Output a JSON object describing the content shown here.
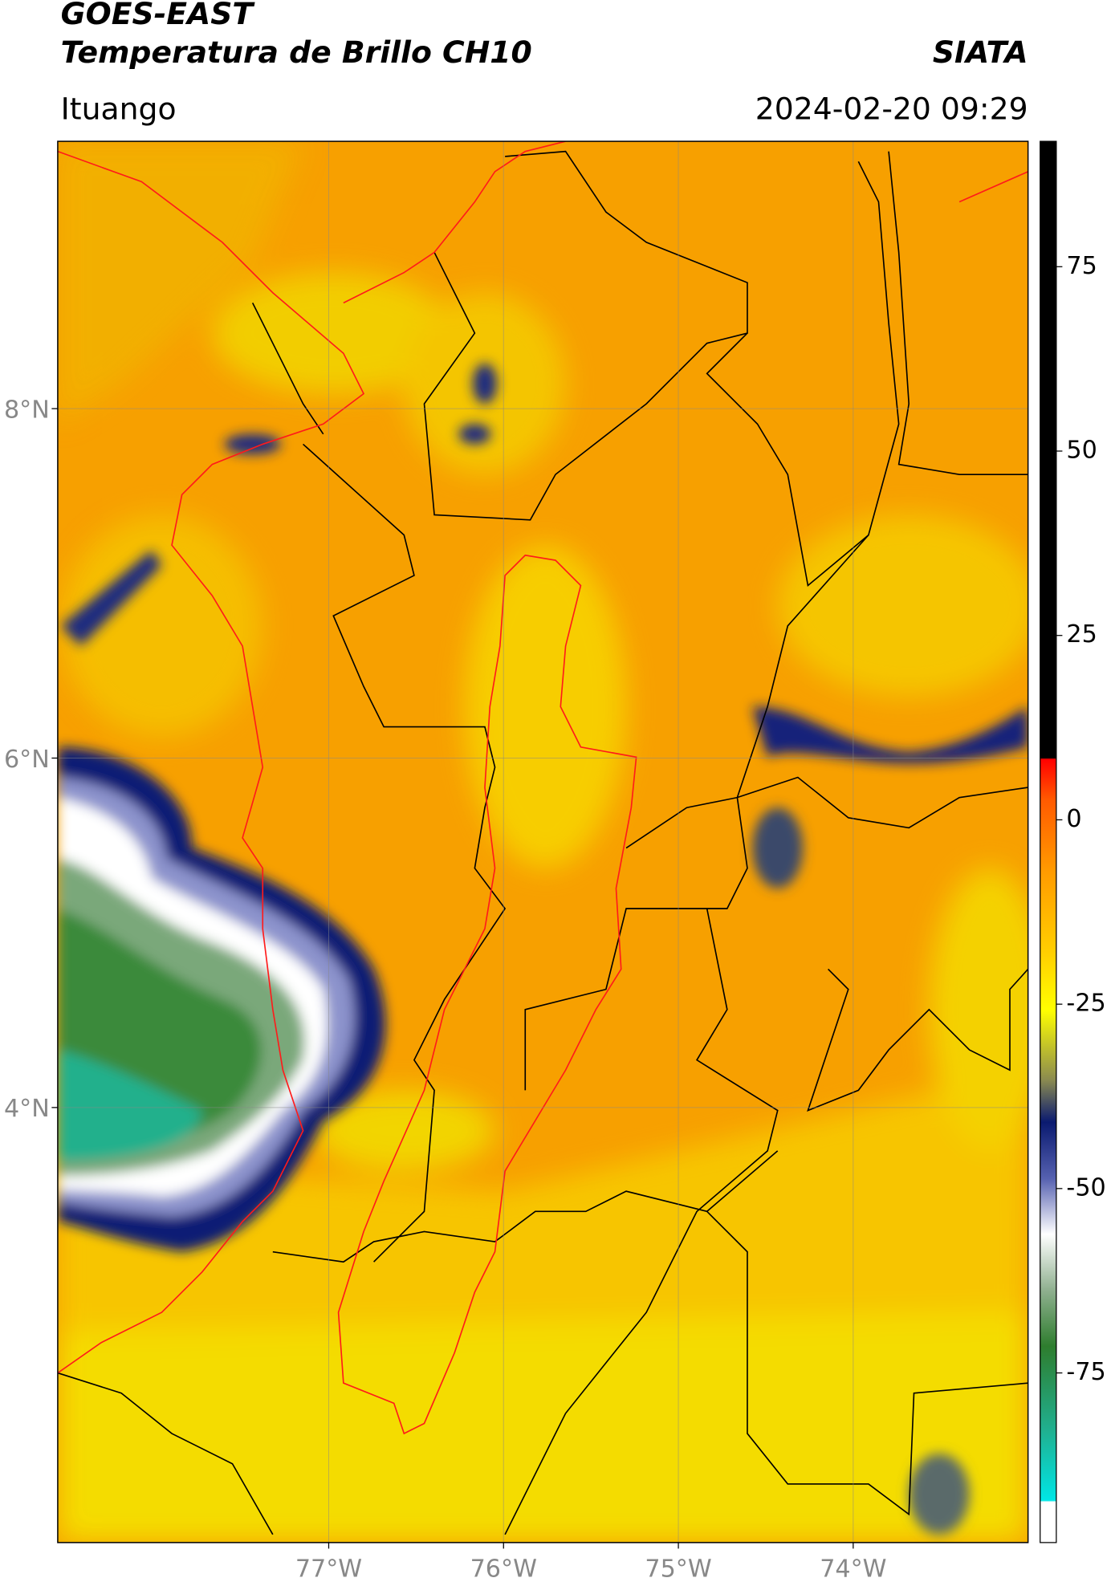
{
  "header": {
    "title": "GOES-EAST",
    "subtitle": "Temperatura de Brillo CH10",
    "source": "SIATA",
    "location": "Ituango",
    "datetime": "2024-02-20 09:29"
  },
  "map": {
    "lon_range": [
      -78.55,
      -73.0
    ],
    "lat_range": [
      1.51,
      9.53
    ],
    "grid": true,
    "lon_ticks": [
      {
        "value": -77,
        "label": "77°W"
      },
      {
        "value": -76,
        "label": "76°W"
      },
      {
        "value": -75,
        "label": "75°W"
      },
      {
        "value": -74,
        "label": "74°W"
      }
    ],
    "lat_ticks": [
      {
        "value": 8,
        "label": "8°N"
      },
      {
        "value": 6,
        "label": "6°N"
      },
      {
        "value": 4,
        "label": "4°N"
      }
    ]
  },
  "colorbar": {
    "range": [
      -98,
      92
    ],
    "ticks": [
      75,
      50,
      25,
      0,
      -25,
      -50,
      -75
    ]
  }
}
